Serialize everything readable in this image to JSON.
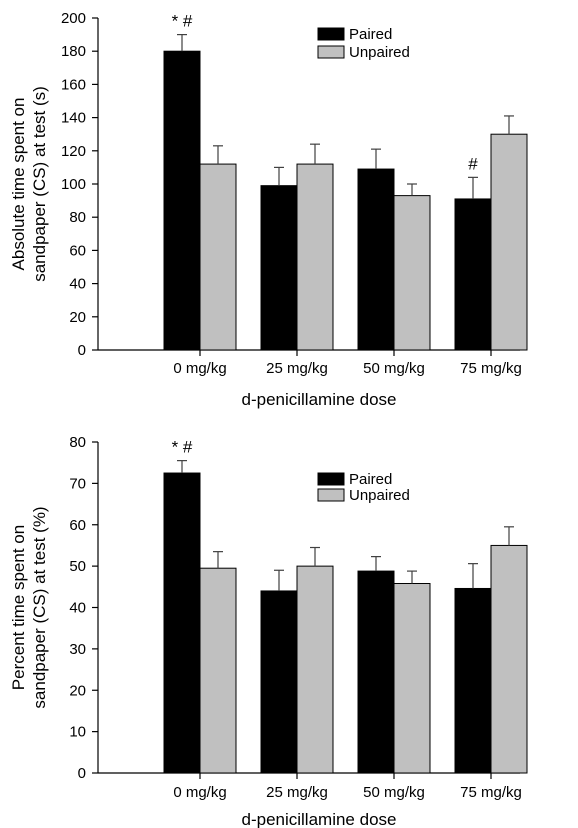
{
  "colors": {
    "paired": "#000000",
    "unpaired": "#c0c0c0",
    "error_bar": "#404040"
  },
  "chart_data": [
    {
      "type": "bar",
      "categories": [
        "0  mg/kg",
        "25 mg/kg",
        "50  mg/kg",
        "75  mg/kg"
      ],
      "series": [
        {
          "name": "Paired",
          "values": [
            180,
            99,
            109,
            91
          ],
          "errors": [
            10,
            11,
            12,
            13
          ]
        },
        {
          "name": "Unpaired",
          "values": [
            112,
            112,
            93,
            130
          ],
          "errors": [
            11,
            12,
            7,
            11
          ]
        }
      ],
      "annotations": [
        {
          "category": 0,
          "series": 0,
          "text": "*  #"
        },
        {
          "category": 3,
          "series": 0,
          "text": "#"
        }
      ],
      "xlabel": "d-penicillamine  dose",
      "ylabel_lines": [
        "Absolute time spent on",
        "sandpaper (CS) at test (s)"
      ],
      "ylim": [
        0,
        200
      ],
      "yticks": [
        0,
        20,
        40,
        60,
        80,
        100,
        120,
        140,
        160,
        180,
        200
      ],
      "legend": "top-right",
      "grid": false
    },
    {
      "type": "bar",
      "categories": [
        "0  mg/kg",
        "25 mg/kg",
        "50  mg/kg",
        "75  mg/kg"
      ],
      "series": [
        {
          "name": "Paired",
          "values": [
            72.5,
            44,
            48.8,
            44.6
          ],
          "errors": [
            3,
            5,
            3.5,
            6
          ]
        },
        {
          "name": "Unpaired",
          "values": [
            49.5,
            50,
            45.8,
            55
          ],
          "errors": [
            4,
            4.5,
            3,
            4.5
          ]
        }
      ],
      "annotations": [
        {
          "category": 0,
          "series": 0,
          "text": "*  #"
        }
      ],
      "xlabel": "d-penicillamine  dose",
      "ylabel_lines": [
        "Percent time spent on",
        "sandpaper (CS) at test (%)"
      ],
      "ylim": [
        0,
        80
      ],
      "yticks": [
        0,
        10,
        20,
        30,
        40,
        50,
        60,
        70,
        80
      ],
      "legend": "top-right",
      "grid": false
    }
  ]
}
